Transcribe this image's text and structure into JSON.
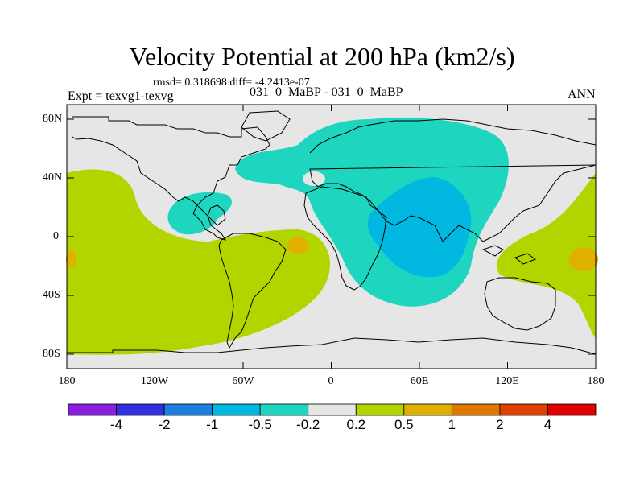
{
  "title": "Velocity Potential at 200 hPa (km2/s)",
  "stats": "rmsd= 0.318698  diff= -4.2413e-07",
  "left_label": "Expt = texvg1-texvg",
  "center_label": "031_0_MaBP - 031_0_MaBP",
  "right_label": "ANN",
  "lat_labels": [
    "80N",
    "40N",
    "0",
    "40S",
    "80S"
  ],
  "lon_labels": [
    "180",
    "120W",
    "60W",
    "0",
    "60E",
    "120E",
    "180"
  ],
  "colorbar": {
    "colors": [
      "#8a1ee0",
      "#3030e0",
      "#1e7ee0",
      "#00b8e0",
      "#1ed6c0",
      "#e6e6e6",
      "#b4d400",
      "#e0b000",
      "#e07800",
      "#e04000",
      "#e00000"
    ],
    "labels": [
      "-4",
      "-2",
      "-1",
      "-0.5",
      "-0.2",
      "0.2",
      "0.5",
      "1",
      "2",
      "4"
    ]
  },
  "map_colors": {
    "background": "#e6e6e6",
    "negative_02": "#1ed6c0",
    "negative_05": "#00b8e0",
    "positive_02": "#b4d400",
    "positive_05": "#e0b000",
    "coast": "#000000"
  }
}
